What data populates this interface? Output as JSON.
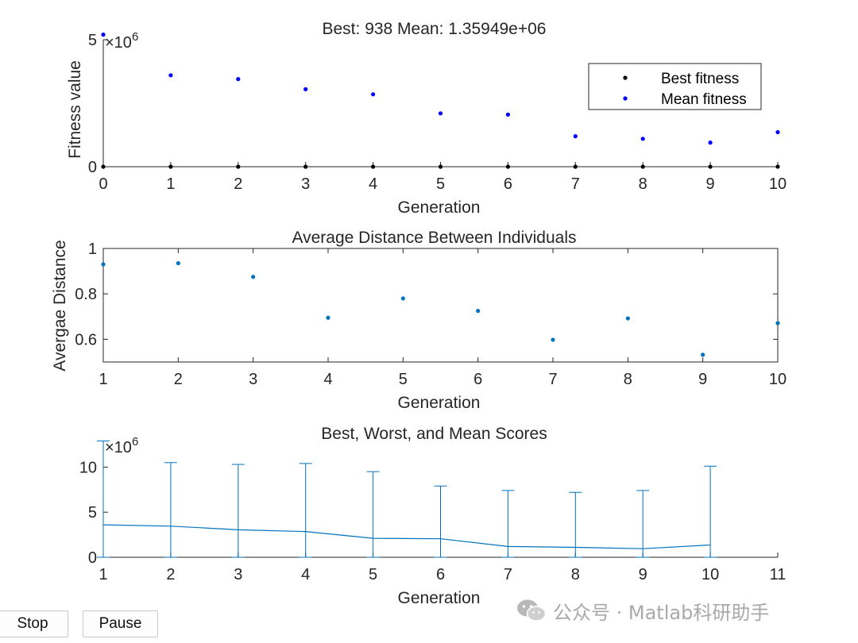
{
  "charts": [
    {
      "type": "scatter",
      "title": "Best: 938 Mean: 1.35949e+06",
      "xlabel": "Generation",
      "ylabel": "Fitness value",
      "y_multiplier": "×10",
      "y_exponent": "6",
      "xlim": [
        0,
        10
      ],
      "ylim": [
        0,
        5
      ],
      "xticks": [
        0,
        1,
        2,
        3,
        4,
        5,
        6,
        7,
        8,
        9,
        10
      ],
      "yticks": [
        0,
        5
      ],
      "legend": {
        "placement": "top-right",
        "entries": [
          "Best fitness",
          "Mean fitness"
        ]
      },
      "series": [
        {
          "name": "Best fitness",
          "color": "#000000",
          "x": [
            0,
            1,
            2,
            3,
            4,
            5,
            6,
            7,
            8,
            9,
            10
          ],
          "y": [
            0,
            0,
            0,
            0,
            0,
            0,
            0,
            0,
            0,
            0,
            0.000938
          ]
        },
        {
          "name": "Mean fitness",
          "color": "#0000ff",
          "x": [
            0,
            1,
            2,
            3,
            4,
            5,
            6,
            7,
            8,
            9,
            10
          ],
          "y": [
            5.2,
            3.6,
            3.45,
            3.05,
            2.85,
            2.1,
            2.05,
            1.2,
            1.1,
            0.95,
            1.36
          ]
        }
      ]
    },
    {
      "type": "scatter",
      "title": "Average Distance Between Individuals",
      "xlabel": "Generation",
      "ylabel": "Avergae Distance",
      "xlim": [
        1,
        10
      ],
      "ylim": [
        0.5,
        1.0
      ],
      "xticks": [
        1,
        2,
        3,
        4,
        5,
        6,
        7,
        8,
        9,
        10
      ],
      "yticks": [
        0.6,
        0.8,
        1
      ],
      "series": [
        {
          "name": "Average distance",
          "color": "#0072bd",
          "x": [
            1,
            2,
            3,
            4,
            5,
            6,
            7,
            8,
            9,
            10
          ],
          "y": [
            0.93,
            0.935,
            0.875,
            0.695,
            0.78,
            0.725,
            0.598,
            0.692,
            0.532,
            0.671
          ]
        }
      ]
    },
    {
      "type": "line",
      "title": "Best, Worst, and Mean Scores",
      "xlabel": "Generation",
      "ylabel": "",
      "y_multiplier": "×10",
      "y_exponent": "6",
      "xlim": [
        1,
        11
      ],
      "ylim": [
        0,
        12.5
      ],
      "xticks": [
        1,
        2,
        3,
        4,
        5,
        6,
        7,
        8,
        9,
        10,
        11
      ],
      "yticks": [
        0,
        5,
        10
      ],
      "series": [
        {
          "name": "Mean score",
          "color": "#0072bd",
          "x": [
            1,
            2,
            3,
            4,
            5,
            6,
            7,
            8,
            9,
            10
          ],
          "mean": [
            3.6,
            3.45,
            3.05,
            2.85,
            2.1,
            2.05,
            1.2,
            1.1,
            0.95,
            1.36
          ],
          "best": [
            0,
            0,
            0,
            0,
            0,
            0,
            0,
            0,
            0,
            0
          ],
          "worst": [
            12.9,
            10.5,
            10.3,
            10.4,
            9.5,
            7.9,
            7.4,
            7.2,
            7.4,
            10.1
          ]
        }
      ]
    }
  ],
  "buttons": {
    "stop": "Stop",
    "pause": "Pause"
  },
  "watermark": {
    "text": "公众号 · Matlab科研助手",
    "color": "#a9a9a9"
  }
}
